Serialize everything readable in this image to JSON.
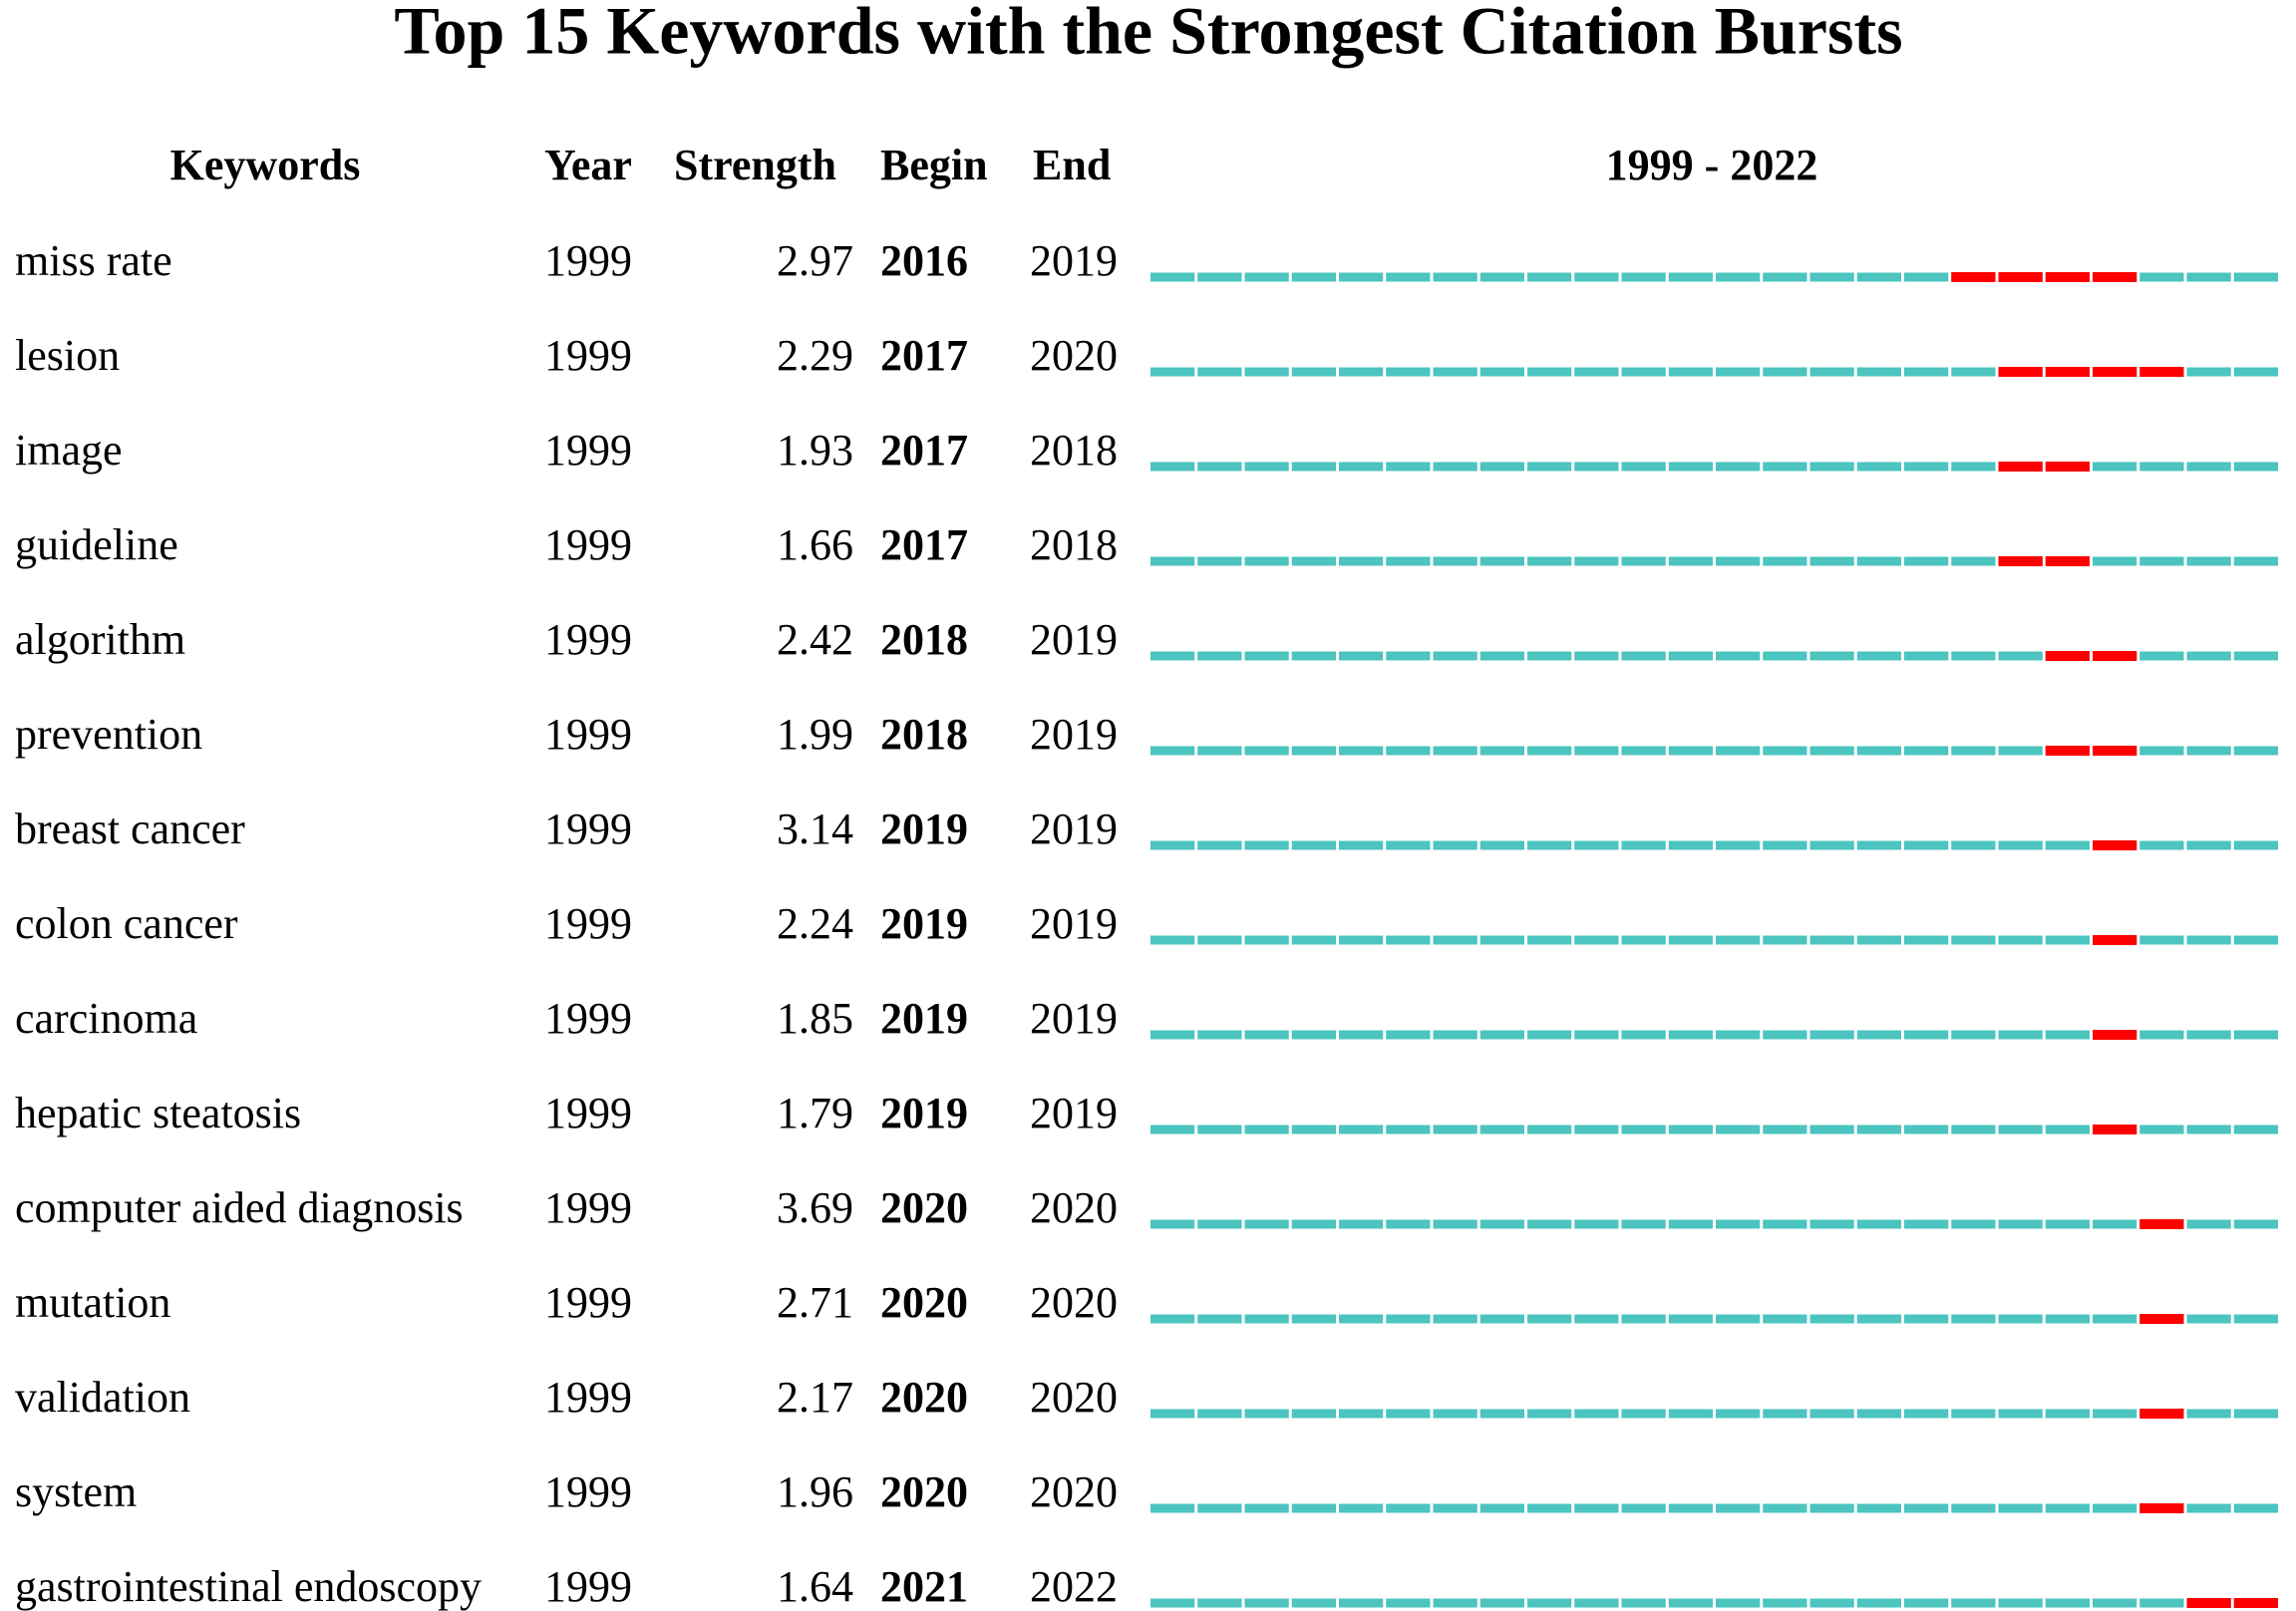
{
  "chart_data": {
    "type": "burst",
    "title": "Top 15 Keywords with the Strongest Citation Bursts",
    "headers": [
      "Keywords",
      "Year",
      "Strength",
      "Begin",
      "End"
    ],
    "range_label": "1999 - 2022",
    "xlim": [
      1999,
      2022
    ],
    "line_color": "#4cc4c0",
    "burst_color": "#ff0000",
    "rows": [
      {
        "keyword": "miss rate",
        "year": 1999,
        "strength": 2.97,
        "begin": 2016,
        "end": 2019
      },
      {
        "keyword": "lesion",
        "year": 1999,
        "strength": 2.29,
        "begin": 2017,
        "end": 2020
      },
      {
        "keyword": "image",
        "year": 1999,
        "strength": 1.93,
        "begin": 2017,
        "end": 2018
      },
      {
        "keyword": "guideline",
        "year": 1999,
        "strength": 1.66,
        "begin": 2017,
        "end": 2018
      },
      {
        "keyword": "algorithm",
        "year": 1999,
        "strength": 2.42,
        "begin": 2018,
        "end": 2019
      },
      {
        "keyword": "prevention",
        "year": 1999,
        "strength": 1.99,
        "begin": 2018,
        "end": 2019
      },
      {
        "keyword": "breast cancer",
        "year": 1999,
        "strength": 3.14,
        "begin": 2019,
        "end": 2019
      },
      {
        "keyword": "colon cancer",
        "year": 1999,
        "strength": 2.24,
        "begin": 2019,
        "end": 2019
      },
      {
        "keyword": "carcinoma",
        "year": 1999,
        "strength": 1.85,
        "begin": 2019,
        "end": 2019
      },
      {
        "keyword": "hepatic steatosis",
        "year": 1999,
        "strength": 1.79,
        "begin": 2019,
        "end": 2019
      },
      {
        "keyword": "computer aided diagnosis",
        "year": 1999,
        "strength": 3.69,
        "begin": 2020,
        "end": 2020
      },
      {
        "keyword": "mutation",
        "year": 1999,
        "strength": 2.71,
        "begin": 2020,
        "end": 2020
      },
      {
        "keyword": "validation",
        "year": 1999,
        "strength": 2.17,
        "begin": 2020,
        "end": 2020
      },
      {
        "keyword": "system",
        "year": 1999,
        "strength": 1.96,
        "begin": 2020,
        "end": 2020
      },
      {
        "keyword": "gastrointestinal endoscopy",
        "year": 1999,
        "strength": 1.64,
        "begin": 2021,
        "end": 2022
      }
    ]
  }
}
